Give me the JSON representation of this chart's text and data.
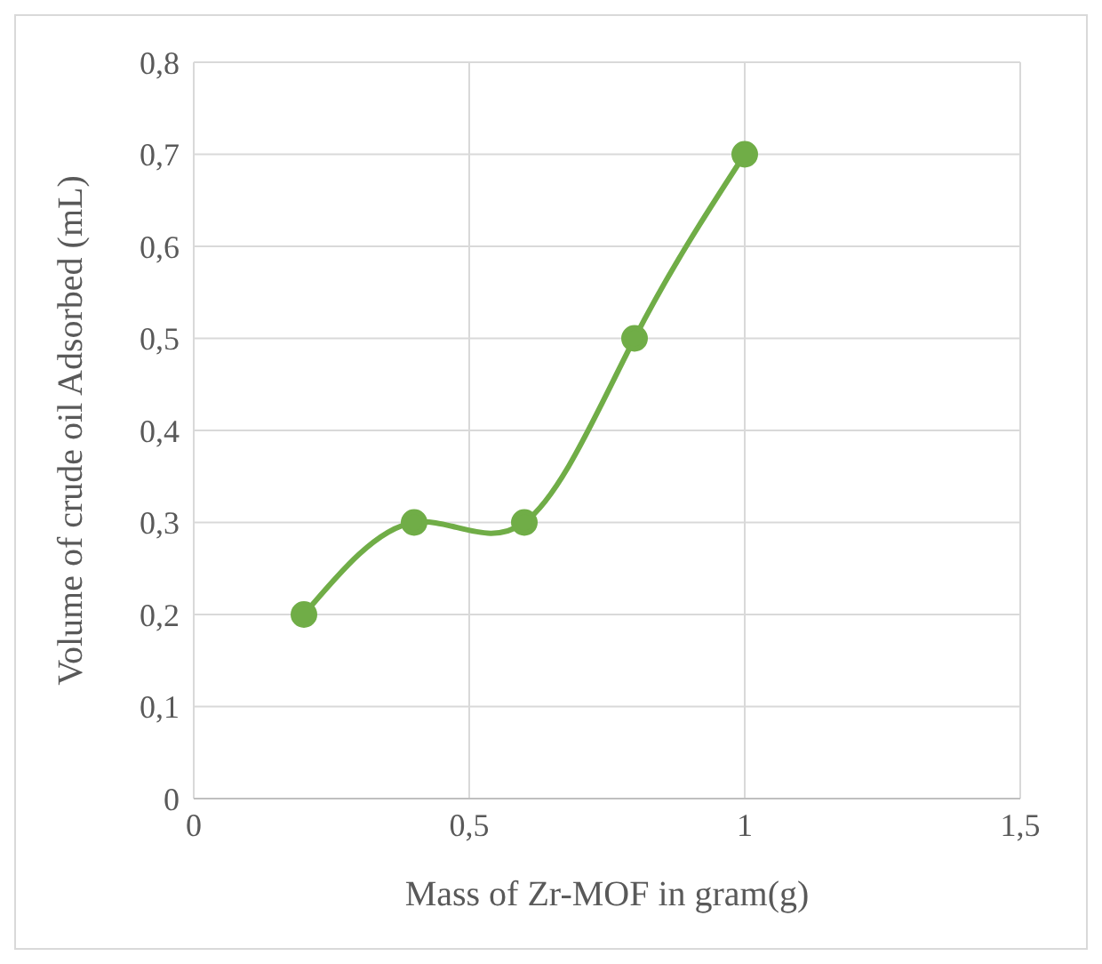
{
  "chart_data": {
    "type": "line",
    "xlabel": "Mass of Zr-MOF in gram(g)",
    "ylabel": "Volume of crude oil Adsorbed (mL)",
    "x": [
      0.2,
      0.4,
      0.6,
      0.8,
      1
    ],
    "series": [
      {
        "color": "#70ad47",
        "values": [
          0.2,
          0.3,
          0.3,
          0.5,
          0.7
        ]
      }
    ],
    "xlim": [
      0,
      1.5
    ],
    "xticks": [
      0,
      {
        "value": 0.5,
        "label": "0,5"
      },
      1,
      {
        "value": 1.5,
        "label": "1,5"
      }
    ],
    "ylim": [
      0,
      0.8
    ],
    "yticks": [
      0,
      {
        "value": 0.1,
        "label": "0,1"
      },
      {
        "value": 0.2,
        "label": "0,2"
      },
      {
        "value": 0.3,
        "label": "0,3"
      },
      {
        "value": 0.4,
        "label": "0,4"
      },
      {
        "value": 0.5,
        "label": "0,5"
      },
      {
        "value": 0.6,
        "label": "0,6"
      },
      {
        "value": 0.7,
        "label": "0,7"
      },
      {
        "value": 0.8,
        "label": "0,8"
      }
    ],
    "grid": true,
    "legend": false,
    "marker": "circle",
    "line_style": "solid"
  }
}
